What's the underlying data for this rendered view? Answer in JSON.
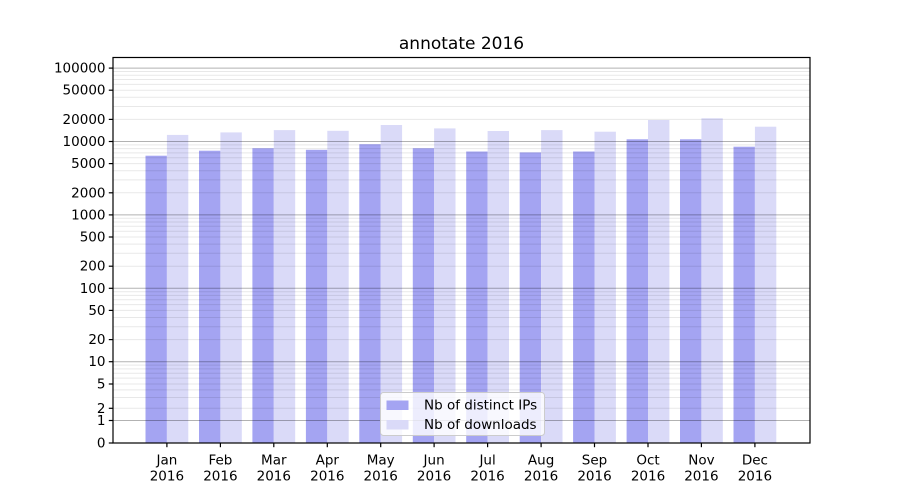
{
  "chart_data": {
    "type": "bar",
    "title": "annotate 2016",
    "year": "2016",
    "categories": [
      "Jan",
      "Feb",
      "Mar",
      "Apr",
      "May",
      "Jun",
      "Jul",
      "Aug",
      "Sep",
      "Oct",
      "Nov",
      "Dec"
    ],
    "series": [
      {
        "name": "Nb of distinct IPs",
        "color": "#a4a4f2",
        "values": [
          6400,
          7500,
          8100,
          7700,
          9200,
          8100,
          7300,
          7100,
          7300,
          10700,
          10700,
          8500
        ]
      },
      {
        "name": "Nb of downloads",
        "color": "#dadaf8",
        "values": [
          12300,
          13300,
          14300,
          14000,
          16800,
          15100,
          13900,
          14300,
          13600,
          19600,
          20700,
          15900
        ]
      }
    ],
    "yscale": "symlog",
    "ylim": [
      0,
      140000
    ],
    "y_ticks": [
      0,
      1,
      2,
      5,
      10,
      20,
      50,
      100,
      200,
      500,
      1000,
      2000,
      5000,
      10000,
      20000,
      50000,
      100000
    ],
    "grid": true,
    "legend_position": "lower center"
  }
}
